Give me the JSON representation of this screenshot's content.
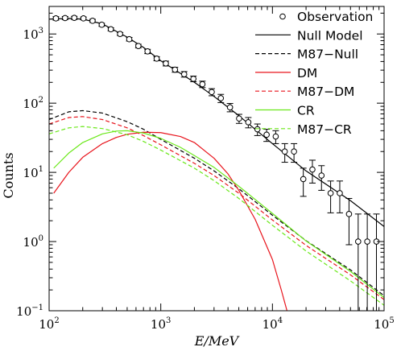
{
  "chart_data": {
    "type": "line",
    "xlabel": "E/MeV",
    "ylabel": "Counts",
    "xscale": "log",
    "yscale": "log",
    "xlim": [
      100,
      100000
    ],
    "ylim": [
      0.1,
      2500
    ],
    "x_ticks": [
      {
        "base": "10",
        "exp": "2",
        "value": 100
      },
      {
        "base": "10",
        "exp": "3",
        "value": 1000
      },
      {
        "base": "10",
        "exp": "4",
        "value": 10000
      },
      {
        "base": "10",
        "exp": "5",
        "value": 100000
      }
    ],
    "y_ticks": [
      {
        "base": "10",
        "exp": "−1",
        "value": 0.1
      },
      {
        "base": "10",
        "exp": "0",
        "value": 1
      },
      {
        "base": "10",
        "exp": "1",
        "value": 10
      },
      {
        "base": "10",
        "exp": "2",
        "value": 100
      },
      {
        "base": "10",
        "exp": "3",
        "value": 1000
      }
    ],
    "legend_position": "top-right",
    "series": [
      {
        "name": "Observation",
        "kind": "points",
        "color": "#000000",
        "x": [
          115,
          139,
          168,
          203,
          245,
          296,
          357,
          432,
          522,
          630,
          761,
          919,
          1110,
          1340,
          1620,
          1960,
          2360,
          2860,
          3450,
          4170,
          5030,
          6080,
          7340,
          8870,
          10700,
          12900,
          15600,
          18900,
          22800,
          27500,
          33200,
          40100,
          48500,
          58600,
          70700,
          85400
        ],
        "y": [
          1680,
          1700,
          1710,
          1680,
          1550,
          1360,
          1170,
          1000,
          840,
          670,
          560,
          440,
          375,
          305,
          262,
          225,
          188,
          145,
          118,
          87,
          60,
          53,
          42,
          35,
          33,
          20,
          20,
          8,
          11,
          9,
          5,
          5,
          2.5,
          1,
          1,
          1
        ],
        "err_lo": [
          1580,
          1610,
          1620,
          1600,
          1470,
          1290,
          1110,
          950,
          790,
          630,
          520,
          410,
          345,
          280,
          238,
          204,
          168,
          128,
          102,
          75,
          51,
          44,
          34,
          28,
          26,
          14,
          14,
          4.5,
          7,
          5.5,
          2.6,
          2.6,
          0.9,
          0.1,
          0.1,
          0.1
        ],
        "err_hi": [
          1780,
          1790,
          1800,
          1760,
          1630,
          1430,
          1230,
          1050,
          890,
          710,
          600,
          470,
          405,
          330,
          286,
          246,
          208,
          162,
          134,
          99,
          69,
          62,
          50,
          42,
          40,
          26,
          26,
          11.5,
          15,
          12.5,
          7.5,
          7.5,
          4.2,
          2.5,
          2.5,
          2.5
        ]
      },
      {
        "name": "Null Model",
        "kind": "line",
        "color": "#000000",
        "dash": "solid",
        "x": [
          100,
          150,
          200,
          300,
          500,
          700,
          1000,
          2000,
          3000,
          5000,
          10000,
          20000,
          50000,
          100000
        ],
        "y": [
          1640,
          1680,
          1640,
          1400,
          900,
          640,
          410,
          200,
          125,
          66,
          26,
          10.5,
          3.9,
          1.65
        ]
      },
      {
        "name": "M87−Null",
        "kind": "line",
        "color": "#000000",
        "dash": "dashed",
        "x": [
          100,
          150,
          200,
          300,
          500,
          700,
          1000,
          2000,
          3000,
          5000,
          10000,
          20000,
          50000,
          100000
        ],
        "y": [
          58,
          75,
          78,
          72,
          54,
          42,
          30,
          16,
          10.5,
          5.8,
          2.4,
          1.03,
          0.39,
          0.165
        ]
      },
      {
        "name": "DM",
        "kind": "line",
        "color": "#e8141c",
        "dash": "solid",
        "x": [
          110,
          150,
          200,
          300,
          400,
          500,
          700,
          1000,
          1500,
          2000,
          3000,
          4000,
          5000,
          7000,
          10000,
          12000,
          13500
        ],
        "y": [
          5,
          10,
          16.5,
          26,
          32,
          35.5,
          38,
          37.5,
          33,
          27,
          16,
          9.5,
          5.5,
          2.1,
          0.55,
          0.2,
          0.1
        ]
      },
      {
        "name": "M87−DM",
        "kind": "line",
        "color": "#e8141c",
        "dash": "dashed",
        "x": [
          100,
          150,
          200,
          300,
          500,
          700,
          1000,
          2000,
          3000,
          5000,
          10000,
          20000,
          50000,
          100000
        ],
        "y": [
          50,
          62,
          64,
          58,
          44,
          34,
          25,
          13.5,
          9,
          5,
          2.05,
          0.88,
          0.33,
          0.145
        ]
      },
      {
        "name": "CR",
        "kind": "line",
        "color": "#6be81a",
        "dash": "solid",
        "x": [
          110,
          150,
          200,
          300,
          400,
          500,
          700,
          1000,
          1500,
          2000,
          3000,
          5000,
          10000,
          20000,
          50000,
          100000
        ],
        "y": [
          11.5,
          19,
          27,
          36,
          39.5,
          40,
          37,
          31,
          23,
          17.5,
          11.8,
          6.3,
          2.55,
          1.02,
          0.37,
          0.155
        ]
      },
      {
        "name": "M87−CR",
        "kind": "line",
        "color": "#6be81a",
        "dash": "dashed",
        "x": [
          100,
          150,
          200,
          300,
          500,
          700,
          1000,
          2000,
          3000,
          5000,
          10000,
          20000,
          50000,
          100000
        ],
        "y": [
          36,
          44,
          46,
          43,
          35,
          28,
          21,
          11.5,
          7.6,
          4.2,
          1.72,
          0.73,
          0.27,
          0.12
        ]
      }
    ]
  }
}
